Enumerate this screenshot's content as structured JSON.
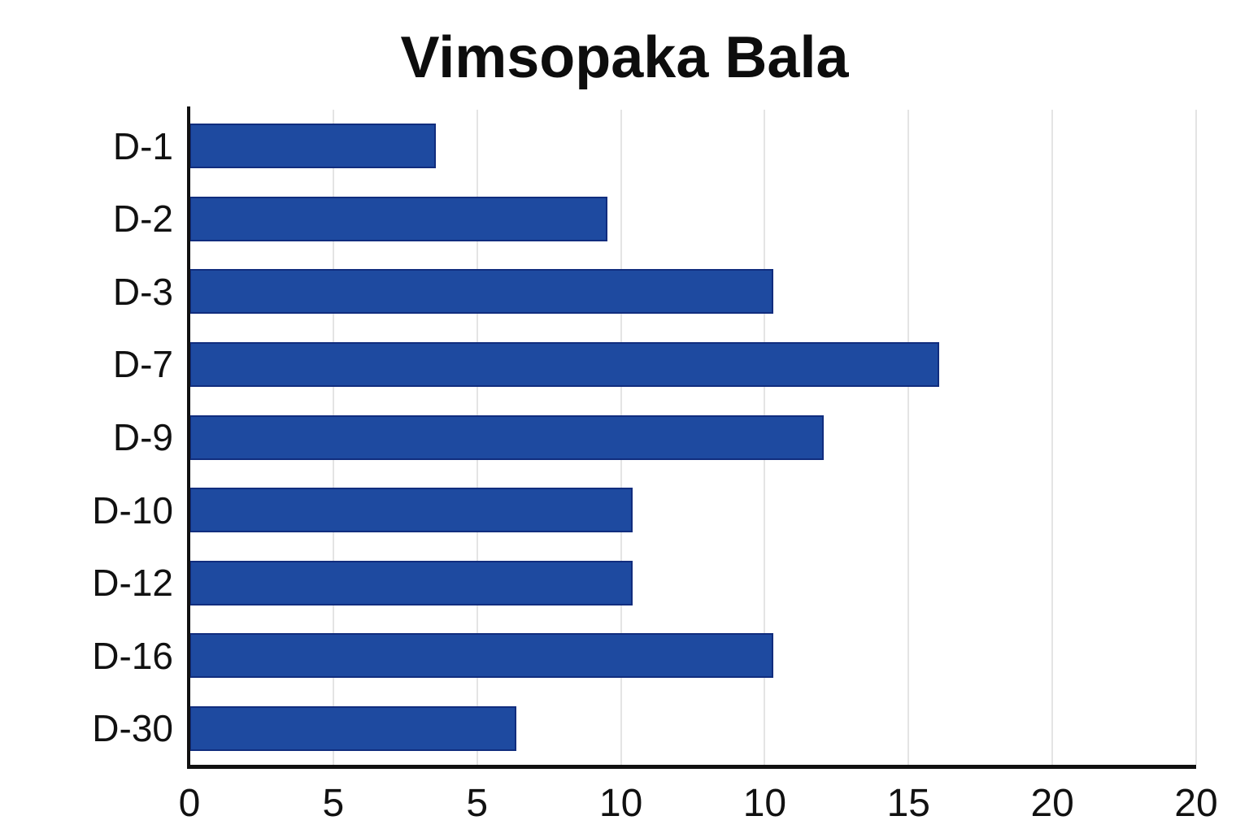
{
  "chart_data": {
    "type": "bar",
    "orientation": "horizontal",
    "title": "Vimsopaka Bala",
    "categories": [
      "D-1",
      "D-2",
      "D-3",
      "D-7",
      "D-9",
      "D-10",
      "D-12",
      "D-16",
      "D-30"
    ],
    "values": [
      4.9,
      8.3,
      11.6,
      14.9,
      12.6,
      8.8,
      8.8,
      11.6,
      6.5
    ],
    "xlim": [
      0,
      20
    ],
    "x_tick_labels": [
      "0",
      "5",
      "5",
      "10",
      "10",
      "15",
      "20",
      "20"
    ],
    "xlabel": "",
    "ylabel": "",
    "grid": "vertical-gridlines-on",
    "legend": "none",
    "bar_color": "#1e4aa0",
    "bar_border_color": "#112d7e",
    "gridline_color": "#e4e4e4",
    "axis_color": "#111111",
    "background_color": "#ffffff"
  }
}
